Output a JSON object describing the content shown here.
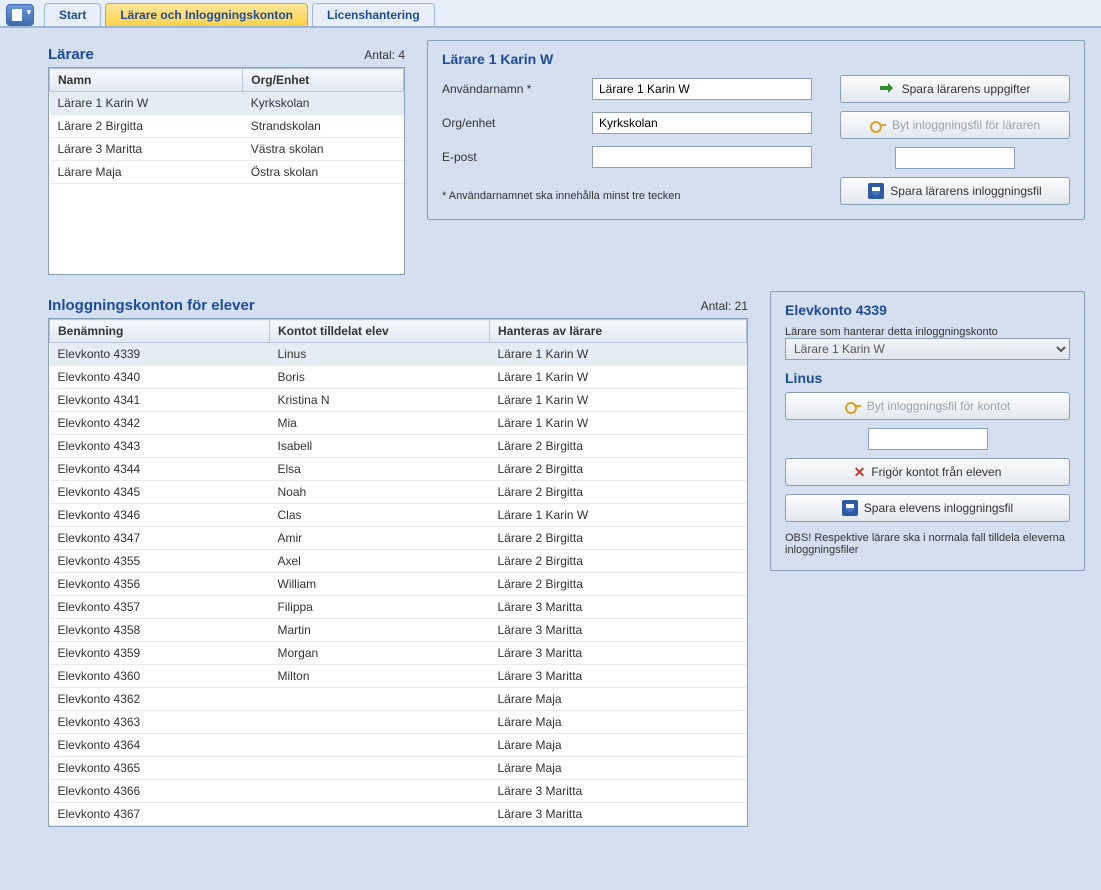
{
  "tabs": {
    "start": "Start",
    "teachers": "Lärare och Inloggningskonton",
    "license": "Licenshantering"
  },
  "teachers_section": {
    "title": "Lärare",
    "count_label": "Antal:",
    "count": "4",
    "columns": {
      "name": "Namn",
      "org": "Org/Enhet"
    },
    "rows": [
      {
        "name": "Lärare 1 Karin W",
        "org": "Kyrkskolan"
      },
      {
        "name": "Lärare 2 Birgitta",
        "org": "Strandskolan"
      },
      {
        "name": "Lärare 3 Maritta",
        "org": "Västra skolan"
      },
      {
        "name": "Lärare Maja",
        "org": "Östra skolan"
      }
    ]
  },
  "teacher_detail": {
    "title": "Lärare 1 Karin W",
    "labels": {
      "username": "Användarnamn *",
      "org": "Org/enhet",
      "email": "E-post",
      "hint": "* Användarnamnet ska innehålla minst tre tecken"
    },
    "values": {
      "username": "Lärare 1 Karin W",
      "org": "Kyrkskolan",
      "email": ""
    },
    "buttons": {
      "save": "Spara lärarens uppgifter",
      "changefile": "Byt inloggningsfil för läraren",
      "savefile": "Spara lärarens inloggningsfil"
    }
  },
  "students_section": {
    "title": "Inloggningskonton för elever",
    "count_label": "Antal:",
    "count": "21",
    "columns": {
      "account": "Benämning",
      "student": "Kontot tilldelat elev",
      "teacher": "Hanteras av lärare"
    },
    "rows": [
      {
        "account": "Elevkonto 4339",
        "student": "Linus",
        "teacher": "Lärare 1 Karin W"
      },
      {
        "account": "Elevkonto 4340",
        "student": "Boris",
        "teacher": "Lärare 1 Karin W"
      },
      {
        "account": "Elevkonto 4341",
        "student": "Kristina N",
        "teacher": "Lärare 1 Karin W"
      },
      {
        "account": "Elevkonto 4342",
        "student": "Mia",
        "teacher": "Lärare 1 Karin W"
      },
      {
        "account": "Elevkonto 4343",
        "student": "Isabell",
        "teacher": "Lärare 2 Birgitta"
      },
      {
        "account": "Elevkonto 4344",
        "student": "Elsa",
        "teacher": "Lärare 2 Birgitta"
      },
      {
        "account": "Elevkonto 4345",
        "student": "Noah",
        "teacher": "Lärare 2 Birgitta"
      },
      {
        "account": "Elevkonto 4346",
        "student": "Clas",
        "teacher": "Lärare 1 Karin W"
      },
      {
        "account": "Elevkonto 4347",
        "student": "Amir",
        "teacher": "Lärare 2 Birgitta"
      },
      {
        "account": "Elevkonto 4355",
        "student": "Axel",
        "teacher": "Lärare 2 Birgitta"
      },
      {
        "account": "Elevkonto 4356",
        "student": "William",
        "teacher": "Lärare 2 Birgitta"
      },
      {
        "account": "Elevkonto 4357",
        "student": "Filippa",
        "teacher": "Lärare 3 Maritta"
      },
      {
        "account": "Elevkonto 4358",
        "student": "Martin",
        "teacher": "Lärare 3 Maritta"
      },
      {
        "account": "Elevkonto 4359",
        "student": "Morgan",
        "teacher": "Lärare 3 Maritta"
      },
      {
        "account": "Elevkonto 4360",
        "student": "Milton",
        "teacher": "Lärare 3 Maritta"
      },
      {
        "account": "Elevkonto 4362",
        "student": "",
        "teacher": "Lärare Maja"
      },
      {
        "account": "Elevkonto 4363",
        "student": "",
        "teacher": "Lärare Maja"
      },
      {
        "account": "Elevkonto 4364",
        "student": "",
        "teacher": "Lärare Maja"
      },
      {
        "account": "Elevkonto 4365",
        "student": "",
        "teacher": "Lärare Maja"
      },
      {
        "account": "Elevkonto 4366",
        "student": "",
        "teacher": "Lärare 3 Maritta"
      },
      {
        "account": "Elevkonto 4367",
        "student": "",
        "teacher": "Lärare 3 Maritta"
      }
    ]
  },
  "student_detail": {
    "title": "Elevkonto 4339",
    "managed_label": "Lärare som hanterar detta inloggningskonto",
    "managed_value": "Lärare 1 Karin W",
    "student_name": "Linus",
    "buttons": {
      "changefile": "Byt inloggningsfil för kontot",
      "release": "Frigör kontot från eleven",
      "savefile": "Spara elevens inloggningsfil"
    },
    "note": "OBS! Respektive lärare ska i normala fall tilldela eleverna inloggningsfiler"
  }
}
